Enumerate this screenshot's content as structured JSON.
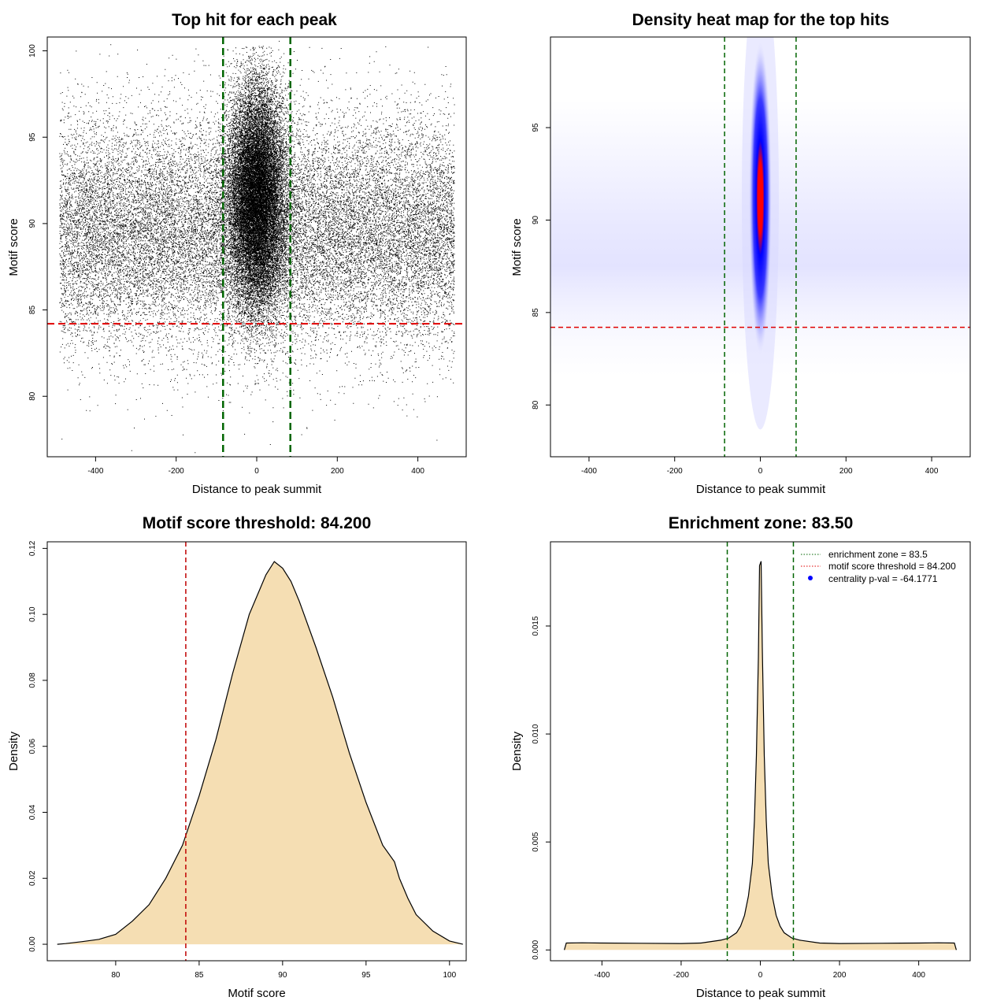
{
  "colors": {
    "zone_line": "#006400",
    "threshold_line": "#e00000",
    "density_fill": "#f5deb3",
    "points": "#000000",
    "heat_low": "#ffffff",
    "heat_mid": "#0000ff",
    "heat_high": "#ff0000",
    "pval_marker": "#0000ff"
  },
  "chart_data": [
    {
      "type": "scatter",
      "title": "Top hit for each peak",
      "xlabel": "Distance to peak summit",
      "ylabel": "Motif score",
      "xlim": [
        -520,
        520
      ],
      "ylim": [
        76.5,
        100.8
      ],
      "xticks": [
        -400,
        -200,
        0,
        200,
        400
      ],
      "yticks": [
        80,
        85,
        90,
        95,
        100
      ],
      "vlines": [
        -83.5,
        83.5
      ],
      "hline": 84.2,
      "x_range": [
        -490,
        490
      ],
      "score_mean": 89.5,
      "score_sd": 3.3,
      "central_score_mean": 91.5,
      "central_score_sd": 3.2,
      "central_width": 35
    },
    {
      "type": "heatmap",
      "title": "Density heat map for the top hits",
      "xlabel": "Distance to peak summit",
      "ylabel": "Motif score",
      "xlim": [
        -490,
        490
      ],
      "ylim": [
        77.2,
        99.9
      ],
      "xticks": [
        -400,
        -200,
        0,
        200,
        400
      ],
      "yticks": [
        80,
        85,
        90,
        95
      ],
      "vlines": [
        -83.5,
        83.5
      ],
      "hline": 84.2,
      "peak_center": [
        0,
        91.2
      ],
      "peak_sd": [
        9,
        3.2
      ]
    },
    {
      "type": "area",
      "title": "Motif score threshold: 84.200",
      "xlabel": "Motif score",
      "ylabel": "Density",
      "xlim": [
        75.9,
        101.0
      ],
      "ylim": [
        -0.005,
        0.122
      ],
      "xticks": [
        80,
        85,
        90,
        95,
        100
      ],
      "yticks": [
        0.0,
        0.02,
        0.04,
        0.06,
        0.08,
        0.1,
        0.12
      ],
      "ytick_labels": [
        "0.00",
        "0.02",
        "0.04",
        "0.06",
        "0.08",
        "0.10",
        "0.12"
      ],
      "vline": 84.2,
      "x": [
        76.5,
        77,
        78,
        79,
        80,
        81,
        82,
        83,
        84,
        85,
        86,
        87,
        88,
        89,
        89.5,
        90,
        90.5,
        91,
        92,
        93,
        94,
        95,
        96,
        96.7,
        97,
        97.5,
        98,
        99,
        100,
        100.8
      ],
      "y": [
        0.0,
        0.0002,
        0.0008,
        0.0015,
        0.003,
        0.007,
        0.012,
        0.02,
        0.03,
        0.045,
        0.062,
        0.082,
        0.1,
        0.112,
        0.116,
        0.114,
        0.11,
        0.104,
        0.09,
        0.075,
        0.058,
        0.043,
        0.03,
        0.025,
        0.02,
        0.014,
        0.009,
        0.004,
        0.001,
        0.0
      ]
    },
    {
      "type": "area",
      "title": "Enrichment zone: 83.50",
      "xlabel": "Distance to peak summit",
      "ylabel": "Density",
      "xlim": [
        -530,
        530
      ],
      "ylim": [
        -0.0005,
        0.0189
      ],
      "xticks": [
        -400,
        -200,
        0,
        200,
        400
      ],
      "yticks": [
        0.0,
        0.005,
        0.01,
        0.015
      ],
      "ytick_labels": [
        "0.000",
        "0.005",
        "0.010",
        "0.015"
      ],
      "vlines": [
        -83.5,
        83.5
      ],
      "x": [
        -495,
        -490,
        -450,
        -400,
        -300,
        -200,
        -150,
        -100,
        -80,
        -60,
        -50,
        -40,
        -30,
        -20,
        -15,
        -10,
        -5,
        -2,
        0,
        2,
        5,
        10,
        15,
        20,
        30,
        40,
        50,
        60,
        80,
        100,
        150,
        200,
        300,
        400,
        450,
        490,
        495
      ],
      "y": [
        0.0,
        0.00032,
        0.00033,
        0.00032,
        0.00031,
        0.0003,
        0.00032,
        0.00045,
        0.00055,
        0.0008,
        0.0011,
        0.0016,
        0.0025,
        0.004,
        0.006,
        0.009,
        0.0135,
        0.0178,
        0.0179,
        0.018,
        0.014,
        0.009,
        0.006,
        0.004,
        0.0025,
        0.0016,
        0.0011,
        0.0008,
        0.00055,
        0.00045,
        0.00032,
        0.0003,
        0.00031,
        0.00032,
        0.00033,
        0.00032,
        0.0
      ],
      "legend": [
        {
          "label": "enrichment zone = 83.5",
          "kind": "dotted",
          "color": "#006400"
        },
        {
          "label": "motif score threshold = 84.200",
          "kind": "dotted",
          "color": "#e00000"
        },
        {
          "label": "centrality p-val = -64.1771",
          "kind": "point",
          "color": "#0000ff"
        }
      ]
    }
  ]
}
